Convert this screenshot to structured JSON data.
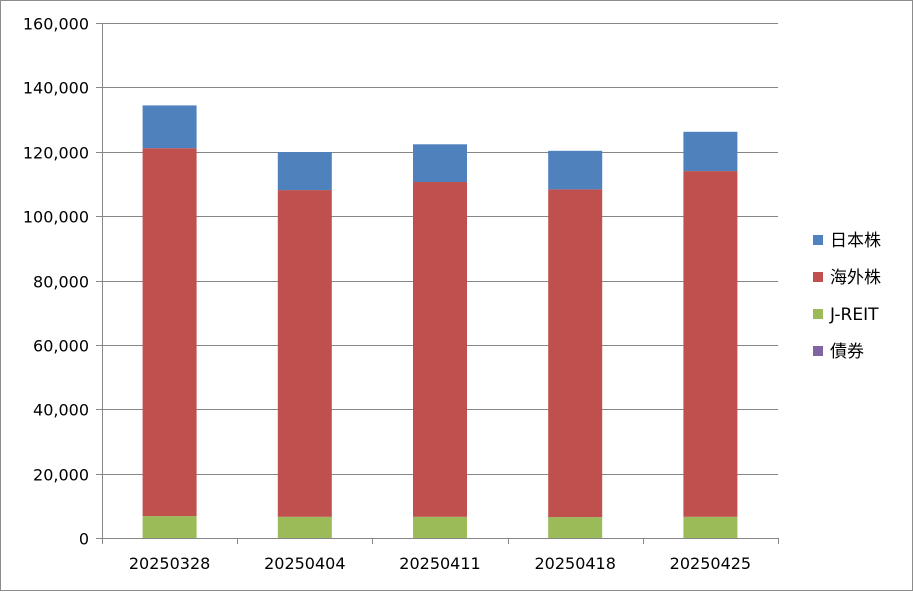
{
  "chart_data": {
    "type": "bar",
    "stacked": true,
    "categories": [
      "20250328",
      "20250404",
      "20250411",
      "20250418",
      "20250425"
    ],
    "series": [
      {
        "name": "債券",
        "color": "#8064a2",
        "values": [
          0,
          0,
          0,
          0,
          0
        ]
      },
      {
        "name": "J-REIT",
        "color": "#9bbb59",
        "values": [
          6800,
          6600,
          6600,
          6500,
          6600
        ]
      },
      {
        "name": "海外株",
        "color": "#c0504d",
        "values": [
          114300,
          101500,
          104000,
          101800,
          107400
        ]
      },
      {
        "name": "日本株",
        "color": "#4f81bd",
        "values": [
          13300,
          11800,
          11700,
          12000,
          12200
        ]
      }
    ],
    "legend_order": [
      "日本株",
      "海外株",
      "J-REIT",
      "債券"
    ],
    "ylim": [
      0,
      160000
    ],
    "yticks": [
      0,
      20000,
      40000,
      60000,
      80000,
      100000,
      120000,
      140000,
      160000
    ],
    "ytick_labels": [
      "0",
      "20,000",
      "40,000",
      "60,000",
      "80,000",
      "100,000",
      "120,000",
      "140,000",
      "160,000"
    ],
    "grid": true,
    "legend_position": "right",
    "gridline_color": "#868686"
  }
}
